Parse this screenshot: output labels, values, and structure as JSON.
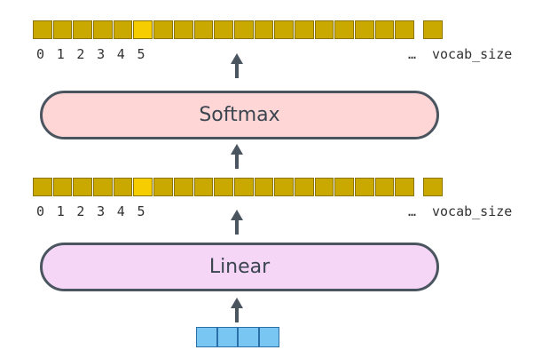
{
  "colors": {
    "cell": "#c9a800",
    "cell_highlight": "#f6cd00",
    "softmax_fill": "#ffd6d6",
    "linear_fill": "#f6d6f6",
    "border": "#4a5560",
    "embed": "#79c6f2"
  },
  "top_vector": {
    "indices": [
      "0",
      "1",
      "2",
      "3",
      "4",
      "5"
    ],
    "ellipsis": "…",
    "end_label": "vocab_size",
    "highlight_index": 5
  },
  "softmax": {
    "label": "Softmax"
  },
  "middle_vector": {
    "indices": [
      "0",
      "1",
      "2",
      "3",
      "4",
      "5"
    ],
    "ellipsis": "…",
    "end_label": "vocab_size",
    "highlight_index": 5
  },
  "linear": {
    "label": "Linear"
  },
  "icons": {
    "arrow": "arrow-up-icon"
  }
}
